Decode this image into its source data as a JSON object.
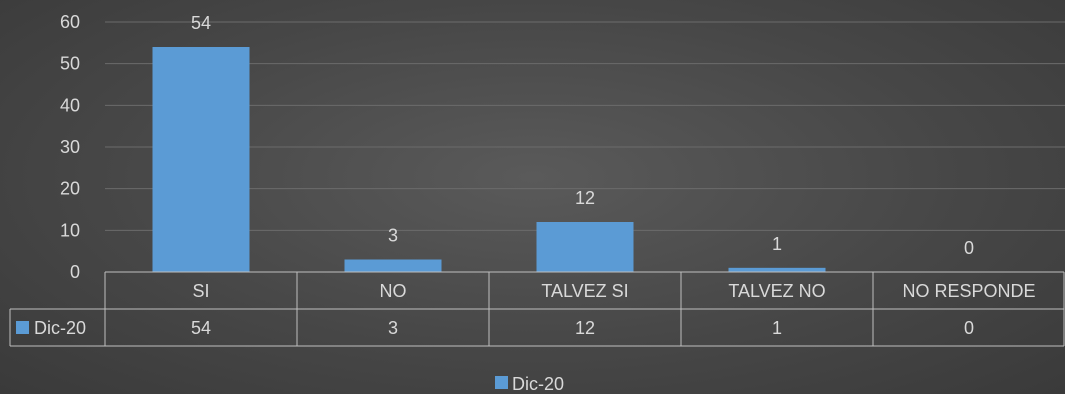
{
  "chart_data": {
    "type": "bar",
    "categories": [
      "SI",
      "NO",
      "TALVEZ SI",
      "TALVEZ NO",
      "NO RESPONDE"
    ],
    "series": [
      {
        "name": "Dic-20",
        "values": [
          54,
          3,
          12,
          1,
          0
        ],
        "color": "#5b9bd5"
      }
    ],
    "ylim": [
      0,
      60
    ],
    "yticks": [
      0,
      10,
      20,
      30,
      40,
      50,
      60
    ],
    "grid": true,
    "data_table": true,
    "legend": "bottom",
    "colors": {
      "gridline": "#6b6b6b",
      "table_border": "#bfbfbf",
      "text": "#d9d9d9"
    }
  }
}
